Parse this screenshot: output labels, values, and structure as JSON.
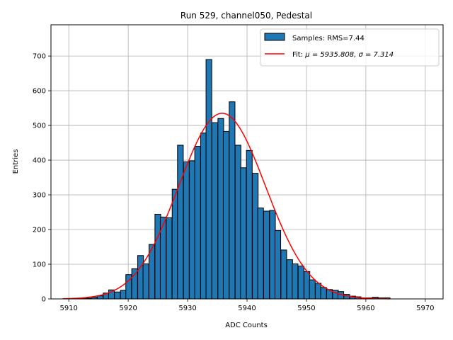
{
  "chart_data": {
    "type": "bar",
    "title": "Run 529, channel050, Pedestal",
    "xlabel": "ADC Counts",
    "ylabel": "Entries",
    "xlim": [
      5907,
      5973
    ],
    "ylim": [
      0,
      790
    ],
    "xticks": [
      5910,
      5920,
      5930,
      5940,
      5950,
      5960,
      5970
    ],
    "yticks": [
      0,
      100,
      200,
      300,
      400,
      500,
      600,
      700
    ],
    "grid": true,
    "legend_position": "top-right",
    "colors": {
      "bars": "#1f77b4",
      "bar_edge": "#000000",
      "fit": "#ff0000"
    },
    "histogram": {
      "name": "Samples: RMS=7.44",
      "bin_width": 0.9677,
      "bin_starts": [
        5909.0,
        5910.0,
        5911.0,
        5911.9,
        5912.9,
        5913.8,
        5914.8,
        5915.8,
        5916.7,
        5917.7,
        5918.7,
        5919.6,
        5920.6,
        5921.6,
        5922.5,
        5923.5,
        5924.5,
        5925.4,
        5926.4,
        5927.4,
        5928.3,
        5929.3,
        5930.3,
        5931.2,
        5932.2,
        5933.1,
        5934.1,
        5935.1,
        5936.0,
        5937.0,
        5938.0,
        5938.9,
        5939.9,
        5940.9,
        5941.8,
        5942.8,
        5943.8,
        5944.7,
        5945.7,
        5946.7,
        5947.6,
        5948.6,
        5949.6,
        5950.5,
        5951.5,
        5952.4,
        5953.4,
        5954.4,
        5955.3,
        5956.3,
        5957.3,
        5958.2,
        5959.2,
        5960.2,
        5961.1,
        5962.1,
        5963.1
      ],
      "values": [
        0,
        0,
        0,
        1,
        2,
        5,
        9,
        17,
        26,
        20,
        25,
        70,
        87,
        125,
        101,
        157,
        244,
        236,
        234,
        316,
        443,
        395,
        398,
        440,
        478,
        690,
        508,
        520,
        483,
        568,
        443,
        378,
        428,
        362,
        262,
        253,
        255,
        197,
        141,
        113,
        101,
        95,
        79,
        55,
        45,
        33,
        27,
        25,
        21,
        13,
        8,
        6,
        3,
        3,
        5,
        3,
        3
      ]
    },
    "fit": {
      "name_prefix": "Fit: ",
      "name_math": "μ = 5935.808, σ = 7.314",
      "mu": 5935.808,
      "sigma": 7.314,
      "amplitude": 535,
      "x_range": [
        5909.0,
        5964.0
      ]
    }
  }
}
